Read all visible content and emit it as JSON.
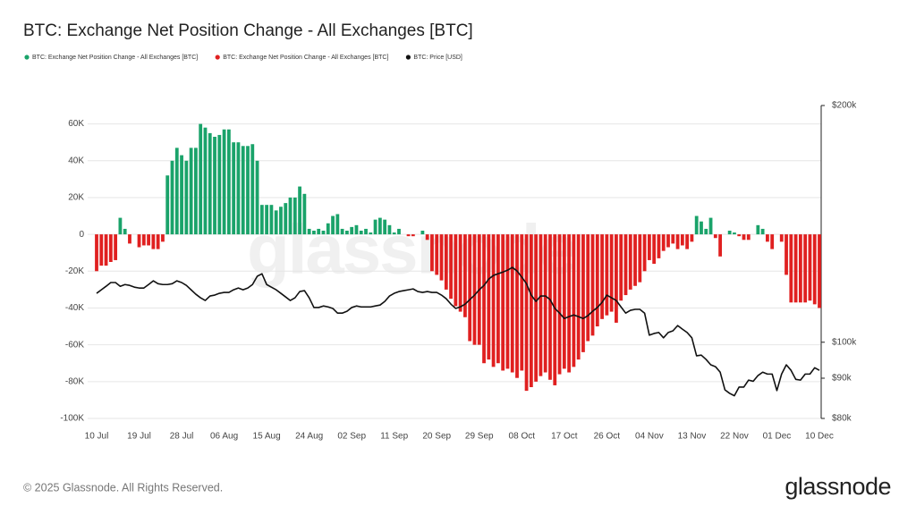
{
  "chart_data": {
    "type": "bar",
    "title": "BTC: Exchange Net Position Change - All Exchanges [BTC]",
    "watermark": "glassnode",
    "x": [
      "10 Jul",
      "11 Jul",
      "12 Jul",
      "13 Jul",
      "14 Jul",
      "15 Jul",
      "16 Jul",
      "17 Jul",
      "18 Jul",
      "19 Jul",
      "20 Jul",
      "21 Jul",
      "22 Jul",
      "23 Jul",
      "24 Jul",
      "25 Jul",
      "26 Jul",
      "27 Jul",
      "28 Jul",
      "29 Jul",
      "30 Jul",
      "31 Jul",
      "01 Aug",
      "02 Aug",
      "03 Aug",
      "04 Aug",
      "05 Aug",
      "06 Aug",
      "07 Aug",
      "08 Aug",
      "09 Aug",
      "10 Aug",
      "11 Aug",
      "12 Aug",
      "13 Aug",
      "14 Aug",
      "15 Aug",
      "16 Aug",
      "17 Aug",
      "18 Aug",
      "19 Aug",
      "20 Aug",
      "21 Aug",
      "22 Aug",
      "23 Aug",
      "24 Aug",
      "25 Aug",
      "26 Aug",
      "27 Aug",
      "28 Aug",
      "29 Aug",
      "30 Aug",
      "31 Aug",
      "01 Sep",
      "02 Sep",
      "03 Sep",
      "04 Sep",
      "05 Sep",
      "06 Sep",
      "07 Sep",
      "08 Sep",
      "09 Sep",
      "10 Sep",
      "11 Sep",
      "12 Sep",
      "13 Sep",
      "14 Sep",
      "15 Sep",
      "16 Sep",
      "17 Sep",
      "18 Sep",
      "19 Sep",
      "20 Sep",
      "21 Sep",
      "22 Sep",
      "23 Sep",
      "24 Sep",
      "25 Sep",
      "26 Sep",
      "27 Sep",
      "28 Sep",
      "29 Sep",
      "30 Sep",
      "01 Oct",
      "02 Oct",
      "03 Oct",
      "04 Oct",
      "05 Oct",
      "06 Oct",
      "07 Oct",
      "08 Oct",
      "09 Oct",
      "10 Oct",
      "11 Oct",
      "12 Oct",
      "13 Oct",
      "14 Oct",
      "15 Oct",
      "16 Oct",
      "17 Oct",
      "18 Oct",
      "19 Oct",
      "20 Oct",
      "21 Oct",
      "22 Oct",
      "23 Oct",
      "24 Oct",
      "25 Oct",
      "26 Oct",
      "27 Oct",
      "28 Oct",
      "29 Oct",
      "30 Oct",
      "31 Oct",
      "01 Nov",
      "02 Nov",
      "03 Nov",
      "04 Nov",
      "05 Nov",
      "06 Nov",
      "07 Nov",
      "08 Nov",
      "09 Nov",
      "10 Nov",
      "11 Nov",
      "12 Nov",
      "13 Nov",
      "14 Nov",
      "15 Nov",
      "16 Nov",
      "17 Nov",
      "18 Nov",
      "19 Nov",
      "20 Nov",
      "21 Nov",
      "22 Nov",
      "23 Nov",
      "24 Nov",
      "25 Nov",
      "26 Nov",
      "27 Nov",
      "28 Nov",
      "29 Nov",
      "30 Nov",
      "01 Dec",
      "02 Dec",
      "03 Dec",
      "04 Dec",
      "05 Dec",
      "06 Dec",
      "07 Dec",
      "08 Dec",
      "09 Dec",
      "10 Dec"
    ],
    "series": [
      {
        "name": "BTC: Exchange Net Position Change - All Exchanges [BTC]",
        "color": "#1aa36a",
        "values": [
          null,
          null,
          null,
          null,
          null,
          9000,
          3000,
          null,
          0,
          null,
          null,
          null,
          null,
          null,
          null,
          32000,
          40000,
          47000,
          43000,
          40000,
          47000,
          47000,
          60000,
          58000,
          55000,
          53000,
          54000,
          57000,
          57000,
          50000,
          50000,
          48000,
          48000,
          49000,
          40000,
          16000,
          16000,
          16000,
          13000,
          15000,
          17000,
          20000,
          20000,
          26000,
          22000,
          3000,
          2000,
          3000,
          2000,
          6000,
          10000,
          11000,
          3000,
          2000,
          4000,
          5000,
          2000,
          3000,
          1000,
          8000,
          9000,
          8000,
          5000,
          1000,
          3000,
          0,
          null,
          null,
          0,
          2000,
          null,
          null,
          null,
          null,
          null,
          null,
          null,
          null,
          null,
          null,
          null,
          null,
          null,
          null,
          null,
          null,
          null,
          null,
          null,
          null,
          null,
          null,
          null,
          null,
          null,
          null,
          null,
          null,
          null,
          null,
          null,
          null,
          null,
          null,
          null,
          null,
          null,
          null,
          null,
          null,
          null,
          null,
          null,
          null,
          null,
          null,
          null,
          null,
          null,
          null,
          null,
          null,
          null,
          null,
          null,
          null,
          null,
          10000,
          7000,
          3000,
          9000,
          null,
          null,
          0,
          2000,
          1000,
          null,
          null,
          null,
          0,
          5000,
          3000,
          null,
          null,
          0,
          null,
          null,
          null,
          null,
          null,
          null,
          null,
          null,
          null
        ]
      },
      {
        "name": "BTC: Exchange Net Position Change - All Exchanges [BTC]",
        "color": "#e02020",
        "values": [
          -20000,
          -17000,
          -17000,
          -15000,
          -14000,
          null,
          null,
          -5000,
          null,
          -7000,
          -6000,
          -6000,
          -8000,
          -8000,
          -4000,
          null,
          null,
          null,
          null,
          null,
          null,
          null,
          null,
          null,
          null,
          null,
          null,
          null,
          null,
          null,
          null,
          null,
          null,
          null,
          null,
          null,
          null,
          null,
          null,
          null,
          null,
          null,
          null,
          null,
          null,
          null,
          null,
          null,
          null,
          null,
          null,
          null,
          null,
          null,
          null,
          null,
          null,
          null,
          null,
          null,
          null,
          null,
          null,
          null,
          null,
          null,
          -1000,
          -1000,
          null,
          null,
          -3000,
          -20000,
          -22000,
          -25000,
          -30000,
          -35000,
          -39000,
          -42000,
          -45000,
          -58000,
          -60000,
          -60000,
          -70000,
          -68000,
          -72000,
          -70000,
          -74000,
          -73000,
          -75000,
          -78000,
          -74000,
          -85000,
          -83000,
          -80000,
          -77000,
          -75000,
          -79000,
          -82000,
          -76000,
          -73000,
          -75000,
          -72000,
          -68000,
          -64000,
          -58000,
          -55000,
          -50000,
          -46000,
          -44000,
          -42000,
          -48000,
          -36000,
          -33000,
          -30000,
          -28000,
          -26000,
          -20000,
          -14000,
          -16000,
          -13000,
          -9000,
          -7000,
          -5000,
          -8000,
          -6000,
          -8000,
          -4000,
          null,
          null,
          null,
          null,
          -2000,
          -12000,
          null,
          null,
          null,
          -1000,
          -3000,
          -3000,
          null,
          null,
          null,
          -4000,
          -8000,
          null,
          -4000,
          -22000,
          -37000,
          -37000,
          -37000,
          -37000,
          -36000,
          -38000,
          -40000
        ]
      },
      {
        "name": "BTC: Price [USD]",
        "color": "#111111",
        "type": "line",
        "axis": "y2",
        "values": [
          115400,
          116600,
          117800,
          119100,
          119100,
          117800,
          118400,
          118100,
          117500,
          117200,
          117200,
          118400,
          119700,
          118700,
          118400,
          118400,
          118700,
          119700,
          119100,
          118100,
          116600,
          115100,
          113900,
          113000,
          114500,
          114800,
          115400,
          115700,
          115700,
          116600,
          117200,
          116600,
          117200,
          118400,
          121300,
          122200,
          118400,
          117500,
          116600,
          115400,
          114200,
          113000,
          113900,
          116000,
          116300,
          113900,
          110700,
          110700,
          111200,
          110900,
          110400,
          108900,
          108900,
          109500,
          110700,
          111200,
          110900,
          110900,
          110900,
          111200,
          111500,
          112700,
          114500,
          115400,
          116000,
          116300,
          116600,
          116900,
          116000,
          115700,
          116000,
          115700,
          115700,
          114800,
          113600,
          111800,
          110400,
          110900,
          111800,
          113300,
          114800,
          116600,
          118100,
          120300,
          121600,
          122200,
          122800,
          123500,
          124500,
          123200,
          121000,
          118700,
          114800,
          112700,
          114500,
          114500,
          113300,
          110400,
          108900,
          107200,
          107800,
          108300,
          107800,
          107200,
          108100,
          109500,
          110700,
          112400,
          114800,
          113900,
          113000,
          110900,
          108900,
          109800,
          110100,
          110100,
          108900,
          102100,
          102600,
          102900,
          101300,
          102900,
          103400,
          105000,
          103900,
          102900,
          101300,
          96100,
          96300,
          95100,
          93600,
          93100,
          91600,
          87000,
          86100,
          85500,
          87700,
          87700,
          89500,
          89200,
          90700,
          91600,
          91100,
          91100,
          86800,
          91100,
          93600,
          92100,
          89700,
          89500,
          91100,
          91100,
          92800,
          92100
        ]
      }
    ],
    "ylim": [
      -100000,
      70000
    ],
    "yticks": [
      {
        "value": -100000,
        "label": "-100K"
      },
      {
        "value": -80000,
        "label": "-80K"
      },
      {
        "value": -60000,
        "label": "-60K"
      },
      {
        "value": -40000,
        "label": "-40K"
      },
      {
        "value": -20000,
        "label": "-20K"
      },
      0,
      {
        "value": 20000,
        "label": "20K"
      },
      {
        "value": 40000,
        "label": "40K"
      },
      {
        "value": 60000,
        "label": "60K"
      }
    ],
    "y2lim": [
      80000,
      200000
    ],
    "y2ticks": [
      {
        "value": 80000,
        "label": "$80k"
      },
      {
        "value": 90000,
        "label": "$90k"
      },
      {
        "value": 100000,
        "label": "$100k"
      },
      {
        "value": 200000,
        "label": "$200k"
      }
    ],
    "y2log": true,
    "grid": true
  },
  "footer": {
    "copyright": "© 2025 Glassnode. All Rights Reserved.",
    "logo": "glassnode"
  }
}
